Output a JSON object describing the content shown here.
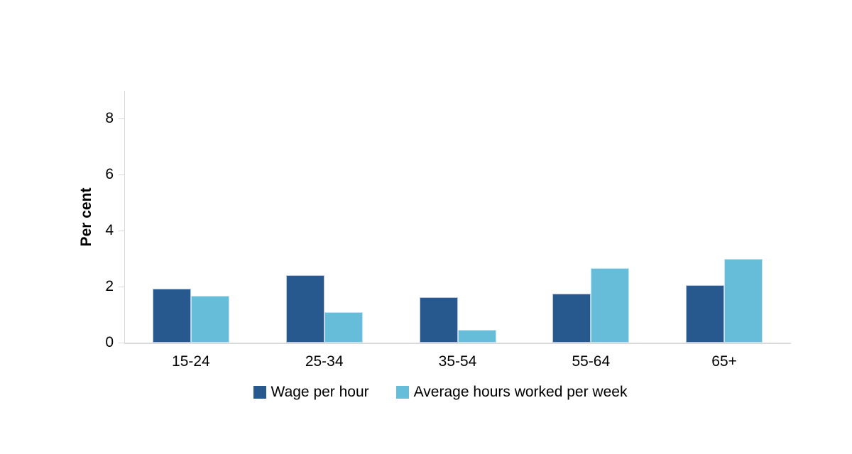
{
  "chart_data": {
    "type": "bar",
    "title": "",
    "categories": [
      "15-24",
      "25-34",
      "35-54",
      "55-64",
      "65+"
    ],
    "series": [
      {
        "name": "Wage per hour",
        "color": "#27598f",
        "border_color": "#b7c4e2",
        "values": [
          1.93,
          2.42,
          1.63,
          1.75,
          2.05
        ]
      },
      {
        "name": "Average hours worked per week",
        "color": "#66bdd9",
        "border_color": "#c4e6f2",
        "values": [
          1.68,
          1.08,
          0.45,
          2.65,
          3.0
        ]
      }
    ],
    "xlabel": "",
    "ylabel": "Per cent",
    "yticks": [
      0,
      2,
      4,
      6,
      8
    ],
    "ylim": [
      0,
      9
    ],
    "grid": false,
    "legend_position": "bottom",
    "axis_color": "#d9d9d9"
  }
}
